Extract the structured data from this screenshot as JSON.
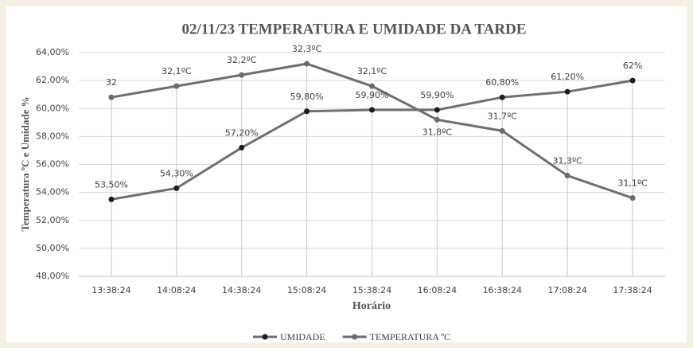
{
  "chart_data": {
    "type": "line",
    "title": "02/11/23 TEMPERATURA E UMIDADE DA TARDE",
    "x_label": "Horário",
    "y_label": "Temperatura ºC e Umidade %",
    "categories": [
      "13:38:24",
      "14:08:24",
      "14:38:24",
      "15:08:24",
      "15:38:24",
      "16:08:24",
      "16:38:24",
      "17:08:24",
      "17:38:24"
    ],
    "series": [
      {
        "name": "UMIDADE",
        "color": "#707070",
        "marker_color": "#1c1c1c",
        "values": [
          53.5,
          54.3,
          57.2,
          59.8,
          59.9,
          59.9,
          60.8,
          61.2,
          62
        ],
        "value_labels": [
          "53,50%",
          "54,30%",
          "57,20%",
          "59,80%",
          "59,90%",
          "59,90%",
          "60,80%",
          "61,20%",
          "62%"
        ]
      },
      {
        "name": "TEMPERATURA ºC",
        "color": "#6e6e6e",
        "marker_color": "#6a6a6a",
        "axis": "y2",
        "values": [
          32,
          32.1,
          32.2,
          32.3,
          32.1,
          31.8,
          31.7,
          31.3,
          31.1
        ],
        "value_labels": [
          "32",
          "32,1ºC",
          "32,2ºC",
          "32,3ºC",
          "32,1ºC",
          "31,8ºC",
          "31,7ºC",
          "31,3ºC",
          "31,1ºC"
        ]
      }
    ],
    "ylim": [
      48,
      64
    ],
    "yticks": [
      {
        "value": 48,
        "label": "48,00%"
      },
      {
        "value": 50,
        "label": "50,00%"
      },
      {
        "value": 52,
        "label": "52,00%"
      },
      {
        "value": 54,
        "label": "54,00%"
      },
      {
        "value": 56,
        "label": "56,00%"
      },
      {
        "value": 58,
        "label": "58,00%"
      },
      {
        "value": 60,
        "label": "60,00%"
      },
      {
        "value": 62,
        "label": "62,00%"
      },
      {
        "value": 64,
        "label": "64,00%"
      }
    ],
    "y2lim": [
      30.4,
      32.4
    ],
    "grid": true,
    "legend": "bottom"
  }
}
